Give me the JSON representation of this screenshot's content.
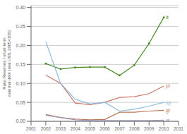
{
  "chart_data": {
    "type": "line",
    "x": [
      2002,
      2003,
      2004,
      2005,
      2006,
      2007,
      2008,
      2009,
      2010
    ],
    "series": [
      {
        "name": "it",
        "color": "#448822",
        "values": [
          0.152,
          0.138,
          0.142,
          0.143,
          0.143,
          0.121,
          0.148,
          0.205,
          0.274
        ],
        "marker": "o"
      },
      {
        "name": "pt",
        "color": "#cc7766",
        "values": [
          0.122,
          0.1,
          0.048,
          0.044,
          0.05,
          0.063,
          0.065,
          0.073,
          0.093
        ]
      },
      {
        "name": "sp",
        "color": "#88bbdd",
        "values": [
          0.21,
          0.1,
          0.058,
          0.046,
          0.05,
          0.027,
          0.032,
          0.04,
          0.05
        ]
      },
      {
        "name": "gr",
        "color": "#bb7755",
        "values": [
          0.018,
          0.01,
          0.006,
          0.004,
          0.005,
          0.024,
          0.024,
          0.027,
          0.029
        ]
      },
      {
        "name": "ie",
        "color": "#9999bb",
        "values": [
          0.016,
          0.01,
          0.004,
          0.002,
          0.002,
          0.002,
          0.002,
          0.002,
          0.003
        ]
      }
    ],
    "ylabel": "Ratio Reserves / short-term external debt (real US$, 2005=100)",
    "xlim": [
      2001,
      2011
    ],
    "ylim": [
      0.0,
      0.305
    ],
    "xticks": [
      2001,
      2002,
      2003,
      2004,
      2005,
      2006,
      2007,
      2008,
      2009,
      2010,
      2011
    ],
    "yticks": [
      {
        "value": 0.0,
        "label": "0.00"
      },
      0.05,
      {
        "value": 0.1,
        "label": "0.10"
      },
      0.15,
      {
        "value": 0.2,
        "label": "0.20"
      },
      0.25,
      {
        "value": 0.3,
        "label": "0.30"
      }
    ],
    "grid": true
  }
}
